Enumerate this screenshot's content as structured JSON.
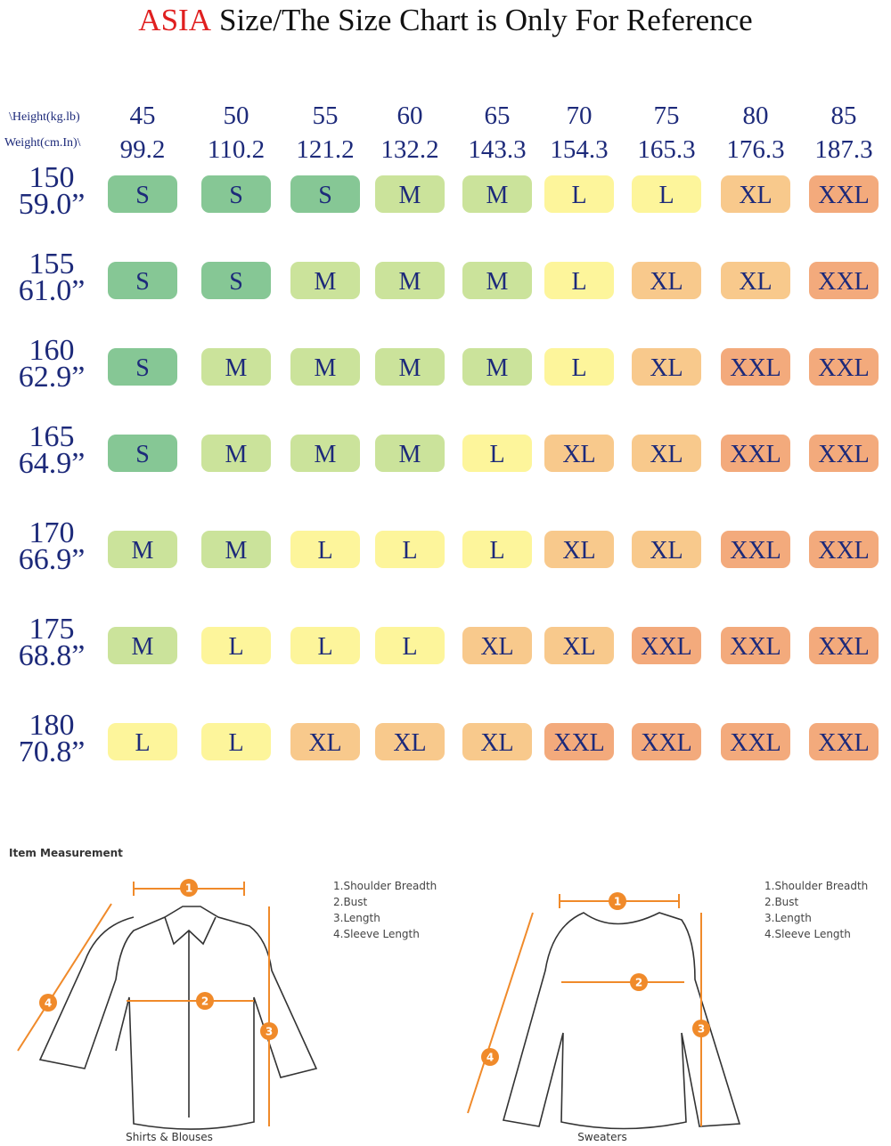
{
  "title": {
    "accent": "ASIA",
    "rest": "Size/The Size Chart is Only For Reference"
  },
  "table": {
    "corner": [
      "\\Height(kg.lb)",
      "Weight(cm.In)\\"
    ],
    "columns": [
      {
        "kg": "45",
        "lb": "99.2"
      },
      {
        "kg": "50",
        "lb": "110.2"
      },
      {
        "kg": "55",
        "lb": "121.2"
      },
      {
        "kg": "60",
        "lb": "132.2"
      },
      {
        "kg": "65",
        "lb": "143.3"
      },
      {
        "kg": "70",
        "lb": "154.3"
      },
      {
        "kg": "75",
        "lb": "165.3"
      },
      {
        "kg": "80",
        "lb": "176.3"
      },
      {
        "kg": "85",
        "lb": "187.3"
      }
    ],
    "rows": [
      {
        "cm": "150",
        "in": "59.0”",
        "sizes": [
          "S",
          "S",
          "S",
          "M",
          "M",
          "L",
          "L",
          "XL",
          "XXL"
        ]
      },
      {
        "cm": "155",
        "in": "61.0”",
        "sizes": [
          "S",
          "S",
          "M",
          "M",
          "M",
          "L",
          "XL",
          "XL",
          "XXL"
        ]
      },
      {
        "cm": "160",
        "in": "62.9”",
        "sizes": [
          "S",
          "M",
          "M",
          "M",
          "M",
          "L",
          "XL",
          "XXL",
          "XXL"
        ]
      },
      {
        "cm": "165",
        "in": "64.9”",
        "sizes": [
          "S",
          "M",
          "M",
          "M",
          "L",
          "XL",
          "XL",
          "XXL",
          "XXL"
        ]
      },
      {
        "cm": "170",
        "in": "66.9”",
        "sizes": [
          "M",
          "M",
          "L",
          "L",
          "L",
          "XL",
          "XL",
          "XXL",
          "XXL"
        ]
      },
      {
        "cm": "175",
        "in": "68.8”",
        "sizes": [
          "M",
          "L",
          "L",
          "L",
          "XL",
          "XL",
          "XXL",
          "XXL",
          "XXL"
        ]
      },
      {
        "cm": "180",
        "in": "70.8”",
        "sizes": [
          "L",
          "L",
          "XL",
          "XL",
          "XL",
          "XXL",
          "XXL",
          "XXL",
          "XXL"
        ]
      }
    ],
    "palette": {
      "S": "#86c795",
      "M": "#cbe39b",
      "L": "#fdf59b",
      "XL": "#f8c98c",
      "XXL": "#f3aa7c"
    }
  },
  "measurement": {
    "heading": "Item Measurement",
    "diagrams": [
      {
        "caption": "Shirts & Blouses",
        "legend": [
          "1.Shoulder Breadth",
          "2.Bust",
          "3.Length",
          "4.Sleeve Length"
        ],
        "markers": [
          "1",
          "2",
          "3",
          "4"
        ]
      },
      {
        "caption": "Sweaters",
        "legend": [
          "1.Shoulder Breadth",
          "2.Bust",
          "3.Length",
          "4.Sleeve Length"
        ],
        "markers": [
          "1",
          "2",
          "3",
          "4"
        ]
      }
    ]
  }
}
